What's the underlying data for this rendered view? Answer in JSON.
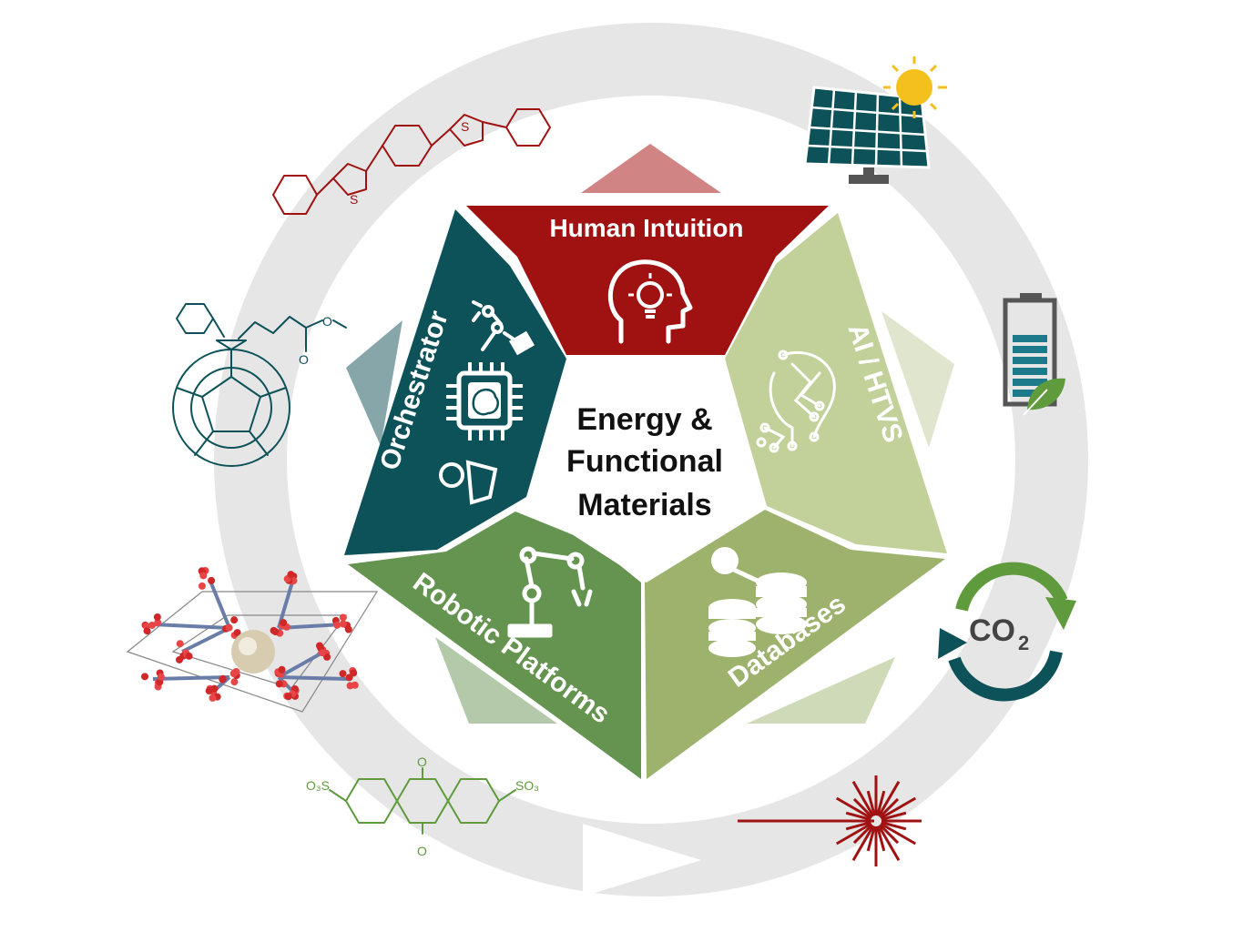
{
  "center": {
    "line1": "Energy &",
    "line2": "Functional",
    "line3": "Materials"
  },
  "segments": {
    "human": {
      "label": "Human Intuition",
      "color": "#a01212",
      "arrow_color": "#d08484"
    },
    "ai": {
      "label": "AI / HTVS",
      "color": "#c2d19a",
      "arrow_color": "#dfe6cd"
    },
    "databases": {
      "label": "Databases",
      "color": "#9db36d",
      "arrow_color": "#cfdab9"
    },
    "robotic": {
      "label": "Robotic Platforms",
      "color": "#64944f",
      "arrow_color": "#b3c9aa"
    },
    "orchestrator": {
      "label": "Orchestrator",
      "color": "#0e5259",
      "arrow_color": "#86a6aa"
    }
  },
  "ring_color": "#e6e6e6",
  "icons": {
    "human": "head-lightbulb-icon",
    "ai": "circuit-brain-icon",
    "databases": "database-stack-icon",
    "robotic": "robot-arm-icon",
    "orchestrator": "chip-brain-icon"
  },
  "periphery": {
    "solar": "solar-panel-icon",
    "battery": "battery-leaf-icon",
    "co2": {
      "icon": "co2-cycle-icon",
      "text": "CO",
      "sub": "2"
    },
    "laser": "laser-icon",
    "anthraquinone": {
      "left": "O₃S",
      "right": "SO₃",
      "oxygen": "O"
    },
    "fullerene": {
      "ester_o": "O",
      "ester_o2": "O"
    },
    "thiophene": {
      "s1": "S",
      "s2": "S"
    },
    "mof": "mof-crystal-icon"
  }
}
